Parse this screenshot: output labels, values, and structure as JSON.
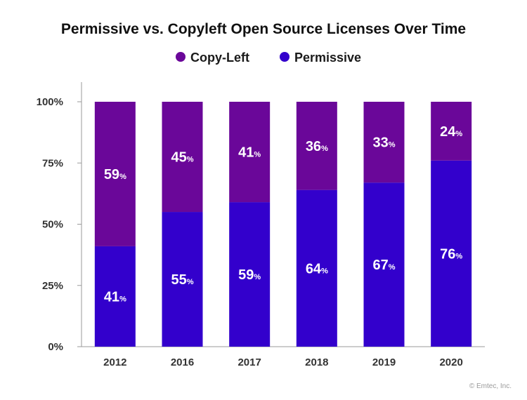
{
  "chart_data": {
    "type": "bar",
    "stacked": true,
    "title": "Permissive vs. Copyleft Open Source Licenses Over Time",
    "categories": [
      "2012",
      "2016",
      "2017",
      "2018",
      "2019",
      "2020"
    ],
    "series": [
      {
        "name": "Permissive",
        "values": [
          41,
          55,
          59,
          64,
          67,
          76
        ],
        "color": "#3300cc"
      },
      {
        "name": "Copy-Left",
        "values": [
          59,
          45,
          41,
          36,
          33,
          24
        ],
        "color": "#6a0799"
      }
    ],
    "data_label_suffix": "%",
    "yticks": [
      "0%",
      "25%",
      "50%",
      "75%",
      "100%"
    ],
    "ylim": [
      0,
      100
    ],
    "xlabel": "",
    "ylabel": "",
    "grid": false,
    "legend_order": [
      "Copy-Left",
      "Permissive"
    ],
    "legend_position": "top-center"
  },
  "footer": {
    "copyright": "© Emtec, Inc."
  }
}
